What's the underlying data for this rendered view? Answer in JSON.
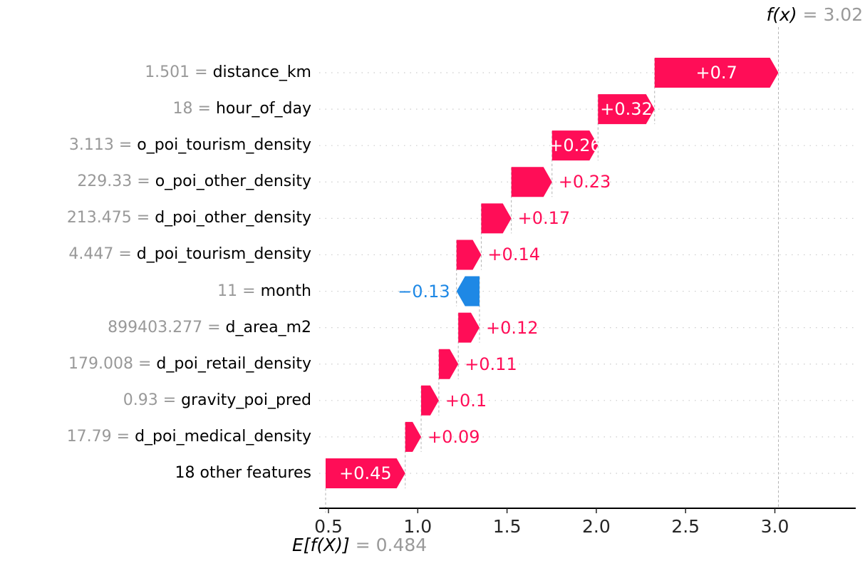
{
  "chart_data": {
    "type": "waterfall",
    "style": "shap-waterfall",
    "eq_sep": " = ",
    "fx": {
      "label": "f(x)",
      "value": "3.02",
      "numeric": 3.02
    },
    "base": {
      "label": "E[f(X)]",
      "value": "0.484",
      "numeric": 0.484
    },
    "x_axis": {
      "ticks": [
        0.5,
        1.0,
        1.5,
        2.0,
        2.5,
        3.0
      ],
      "tick_labels": [
        "0.5",
        "1.0",
        "1.5",
        "2.0",
        "2.5",
        "3.0"
      ]
    },
    "colors": {
      "positive": "#ff0d57",
      "negative": "#1e88e5",
      "inside_label": "#ffffff",
      "value_gray": "#999999",
      "name_black": "#000000",
      "gridline": "#cccccc",
      "connector": "#b3b3b3",
      "axis": "#000000",
      "tick_label": "#262626"
    },
    "features": [
      {
        "value": "1.501",
        "name": "distance_km",
        "shap": 0.7,
        "label": "+0.7",
        "label_inside": true
      },
      {
        "value": "18",
        "name": "hour_of_day",
        "shap": 0.32,
        "label": "+0.32",
        "label_inside": true
      },
      {
        "value": "3.113",
        "name": "o_poi_tourism_density",
        "shap": 0.26,
        "label": "+0.26",
        "label_inside": true
      },
      {
        "value": "229.33",
        "name": "o_poi_other_density",
        "shap": 0.23,
        "label": "+0.23",
        "label_inside": false
      },
      {
        "value": "213.475",
        "name": "d_poi_other_density",
        "shap": 0.17,
        "label": "+0.17",
        "label_inside": false
      },
      {
        "value": "4.447",
        "name": "d_poi_tourism_density",
        "shap": 0.14,
        "label": "+0.14",
        "label_inside": false
      },
      {
        "value": "11",
        "name": "month",
        "shap": -0.13,
        "label": "−0.13",
        "label_inside": false
      },
      {
        "value": "899403.277",
        "name": "d_area_m2",
        "shap": 0.12,
        "label": "+0.12",
        "label_inside": false
      },
      {
        "value": "179.008",
        "name": "d_poi_retail_density",
        "shap": 0.11,
        "label": "+0.11",
        "label_inside": false
      },
      {
        "value": "0.93",
        "name": "gravity_poi_pred",
        "shap": 0.1,
        "label": "+0.1",
        "label_inside": false
      },
      {
        "value": "17.79",
        "name": "d_poi_medical_density",
        "shap": 0.09,
        "label": "+0.09",
        "label_inside": false
      },
      {
        "value": "",
        "name": "18 other features",
        "shap": 0.45,
        "label": "+0.45",
        "label_inside": true
      }
    ]
  }
}
